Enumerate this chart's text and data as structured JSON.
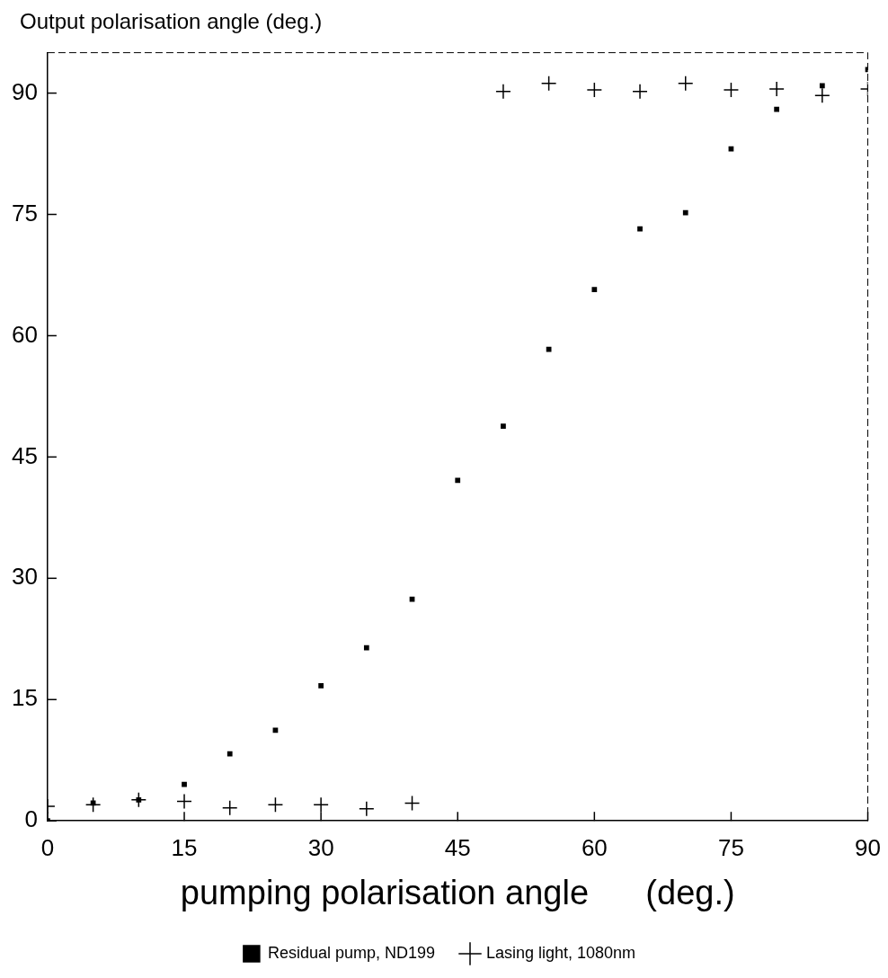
{
  "chart_data": {
    "type": "scatter",
    "xlabel": "pumping polarisation angle      (deg.)",
    "ylabel": "Output polarisation angle (deg.)",
    "xlim": [
      0,
      90
    ],
    "xticks": [
      0,
      15,
      30,
      45,
      60,
      75,
      90
    ],
    "ylim": [
      0,
      95
    ],
    "yticks": [
      0,
      15,
      30,
      45,
      60,
      75,
      90
    ],
    "grid": false,
    "legend": "bottom",
    "series": [
      {
        "name": "Residual pump, ND199",
        "color": "#000000",
        "marker": "square",
        "x": [
          0,
          5,
          10,
          15,
          20,
          25,
          30,
          35,
          40,
          45,
          50,
          55,
          60,
          65,
          70,
          75,
          80,
          85,
          90
        ],
        "values": [
          0,
          2.2,
          2.6,
          4.5,
          8.3,
          11.2,
          16.7,
          21.4,
          27.4,
          42.1,
          48.8,
          58.3,
          65.7,
          73.2,
          75.2,
          83.1,
          88.0,
          90.9,
          92.9
        ]
      },
      {
        "name": "Lasing light, 1080nm",
        "color": "#000000",
        "marker": "cross",
        "x": [
          0,
          5,
          10,
          15,
          20,
          25,
          30,
          35,
          40,
          50,
          55,
          60,
          65,
          70,
          75,
          80,
          85,
          90
        ],
        "values": [
          1.8,
          2.0,
          2.6,
          2.4,
          1.6,
          2.0,
          2.0,
          1.5,
          2.2,
          90.2,
          91.2,
          90.4,
          90.2,
          91.2,
          90.4,
          90.5,
          89.7,
          90.5
        ]
      }
    ]
  }
}
